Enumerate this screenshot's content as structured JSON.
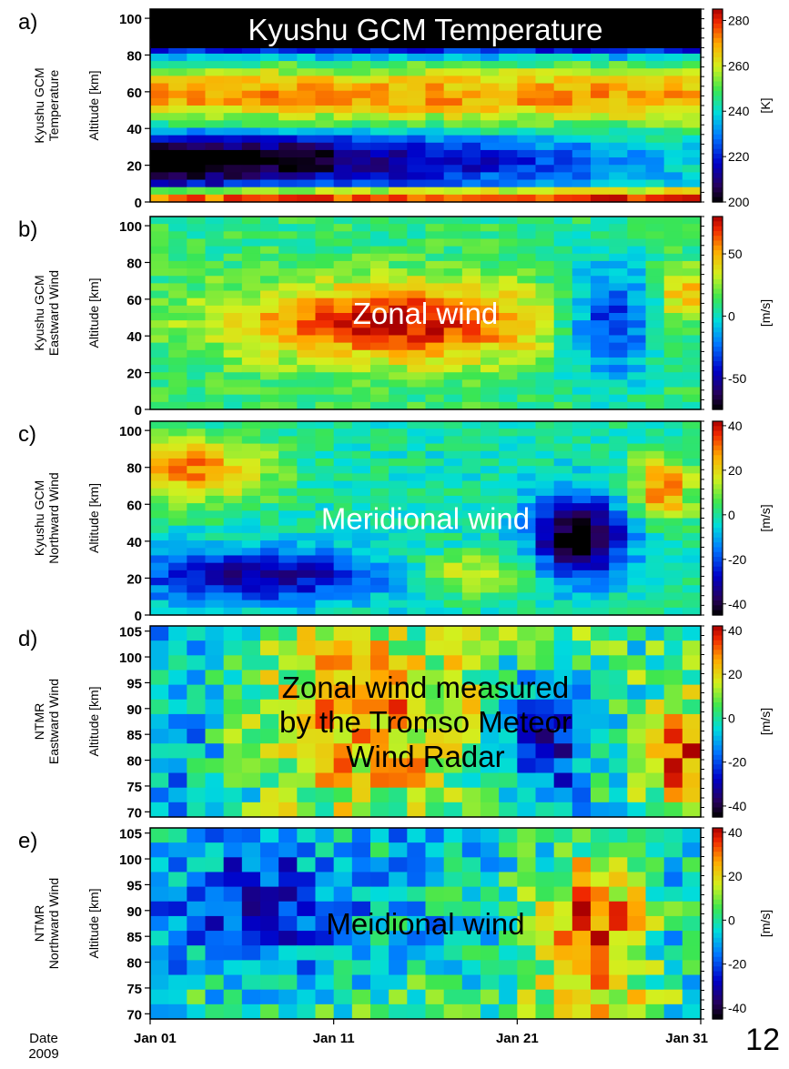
{
  "page_number": "12",
  "date_axis": {
    "label": "Date",
    "year": "2009",
    "ticks": [
      "Jan 01",
      "Jan 11",
      "Jan 21",
      "Jan 31"
    ],
    "x_days": [
      1,
      11,
      21,
      31
    ]
  },
  "chart_data": [
    {
      "type": "heatmap",
      "panel_label": "a)",
      "ylabel_lines": [
        "Kyushu GCM",
        "Temperature"
      ],
      "ylabel": "Altitude [km]",
      "yticks": [
        0,
        20,
        40,
        60,
        80,
        100
      ],
      "ylim": [
        0,
        105
      ],
      "xlim": [
        1,
        31
      ],
      "colorbar": {
        "ticks": [
          280,
          260,
          240,
          220,
          200
        ],
        "unit": "[K]",
        "range": [
          200,
          285
        ]
      },
      "annotation": [
        "Kyushu GCM     Temperature"
      ],
      "annotation_color": "#ffffff",
      "annotation_bg": "#000000",
      "grid": {
        "rows": 26,
        "cols": 30
      }
    },
    {
      "type": "heatmap",
      "panel_label": "b)",
      "ylabel_lines": [
        "Kyushu GCM",
        "Eastward Wind"
      ],
      "ylabel": "Altitude [km]",
      "yticks": [
        0,
        20,
        40,
        60,
        80,
        100
      ],
      "ylim": [
        0,
        105
      ],
      "xlim": [
        1,
        31
      ],
      "colorbar": {
        "ticks": [
          50,
          0,
          -50
        ],
        "unit": "[m/s]",
        "range": [
          -75,
          80
        ]
      },
      "annotation": [
        "Zonal wind"
      ],
      "annotation_color": "#ffffff",
      "grid": {
        "rows": 26,
        "cols": 30
      }
    },
    {
      "type": "heatmap",
      "panel_label": "c)",
      "ylabel_lines": [
        "Kyushu GCM",
        "Northward Wind"
      ],
      "ylabel": "Altitude [km]",
      "yticks": [
        0,
        20,
        40,
        60,
        80,
        100
      ],
      "ylim": [
        0,
        105
      ],
      "xlim": [
        1,
        31
      ],
      "colorbar": {
        "ticks": [
          40,
          20,
          0,
          -20,
          -40
        ],
        "unit": "[m/s]",
        "range": [
          -45,
          42
        ]
      },
      "annotation": [
        "Meridional wind"
      ],
      "annotation_color": "#ffffff",
      "grid": {
        "rows": 26,
        "cols": 30
      }
    },
    {
      "type": "heatmap",
      "panel_label": "d)",
      "ylabel_lines": [
        "NTMR",
        "Eastward Wind"
      ],
      "ylabel": "Altitude [km]",
      "yticks": [
        70,
        75,
        80,
        85,
        90,
        95,
        100,
        105
      ],
      "ylim": [
        69,
        106
      ],
      "xlim": [
        1,
        31
      ],
      "colorbar": {
        "ticks": [
          40,
          20,
          0,
          -20,
          -40
        ],
        "unit": "[m/s]",
        "range": [
          -45,
          42
        ]
      },
      "annotation": [
        "Zonal wind measured",
        "by the Tromso Meteor",
        "Wind Radar"
      ],
      "annotation_color": "#000000",
      "grid": {
        "rows": 13,
        "cols": 30
      }
    },
    {
      "type": "heatmap",
      "panel_label": "e)",
      "ylabel_lines": [
        "NTMR",
        "Northward Wind"
      ],
      "ylabel": "Altitude [km]",
      "yticks": [
        70,
        75,
        80,
        85,
        90,
        95,
        100,
        105
      ],
      "ylim": [
        69,
        106
      ],
      "xlim": [
        1,
        31
      ],
      "colorbar": {
        "ticks": [
          40,
          20,
          0,
          -20,
          -40
        ],
        "unit": "[m/s]",
        "range": [
          -45,
          42
        ]
      },
      "annotation": [
        "Meidional wind"
      ],
      "annotation_color": "#000000",
      "grid": {
        "rows": 13,
        "cols": 30
      }
    }
  ]
}
